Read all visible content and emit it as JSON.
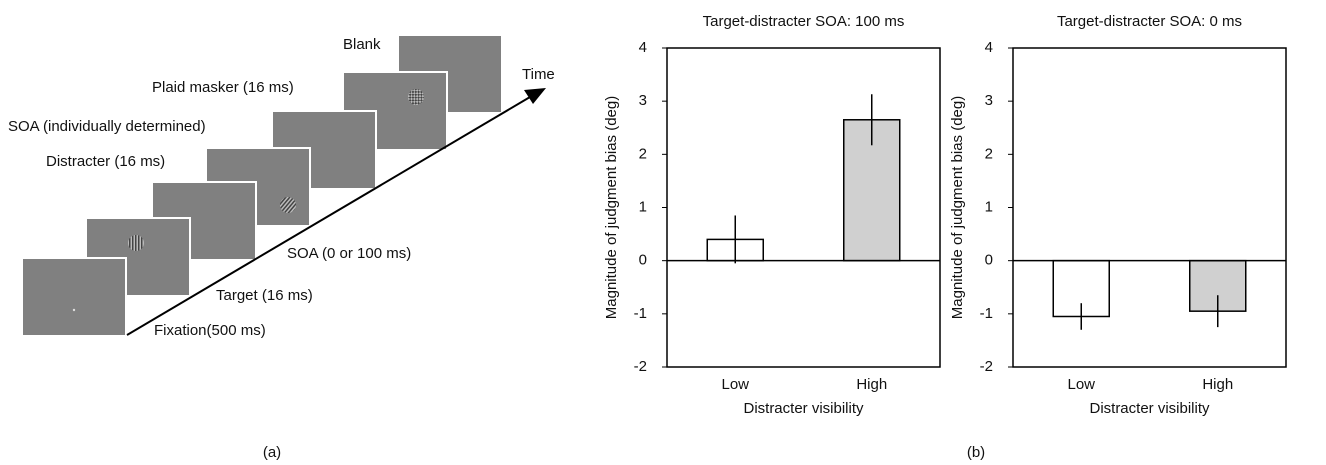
{
  "diagram": {
    "labels": [
      "Blank",
      "Plaid masker (16 ms)",
      "SOA (individually determined)",
      "Distracter (16 ms)",
      "SOA (0 or 100 ms)",
      "Target (16 ms)",
      "Fixation(500 ms)"
    ],
    "time": "Time",
    "panel_a": "(a)",
    "panel_b": "(b)"
  },
  "chart_data": [
    {
      "type": "bar",
      "title": "Target-distracter SOA: 100 ms",
      "y_label": "Magnitude of judgment bias (deg)",
      "x_label": "Distracter visibility",
      "categories": [
        "Low",
        "High"
      ],
      "values": [
        0.4,
        2.65
      ],
      "errors": [
        0.45,
        0.48
      ],
      "colors": [
        "#ffffff",
        "#d0d0d0"
      ],
      "ylim": [
        -2,
        4
      ],
      "yticks": [
        -2,
        -1,
        0,
        1,
        2,
        3,
        4
      ]
    },
    {
      "type": "bar",
      "title": "Target-distracter SOA: 0 ms",
      "y_label": "Magnitude of judgment bias (deg)",
      "x_label": "Distracter visibility",
      "categories": [
        "Low",
        "High"
      ],
      "values": [
        -1.05,
        -0.95
      ],
      "errors": [
        0.25,
        0.3
      ],
      "colors": [
        "#ffffff",
        "#d0d0d0"
      ],
      "ylim": [
        -2,
        4
      ],
      "yticks": [
        -2,
        -1,
        0,
        1,
        2,
        3,
        4
      ]
    }
  ]
}
